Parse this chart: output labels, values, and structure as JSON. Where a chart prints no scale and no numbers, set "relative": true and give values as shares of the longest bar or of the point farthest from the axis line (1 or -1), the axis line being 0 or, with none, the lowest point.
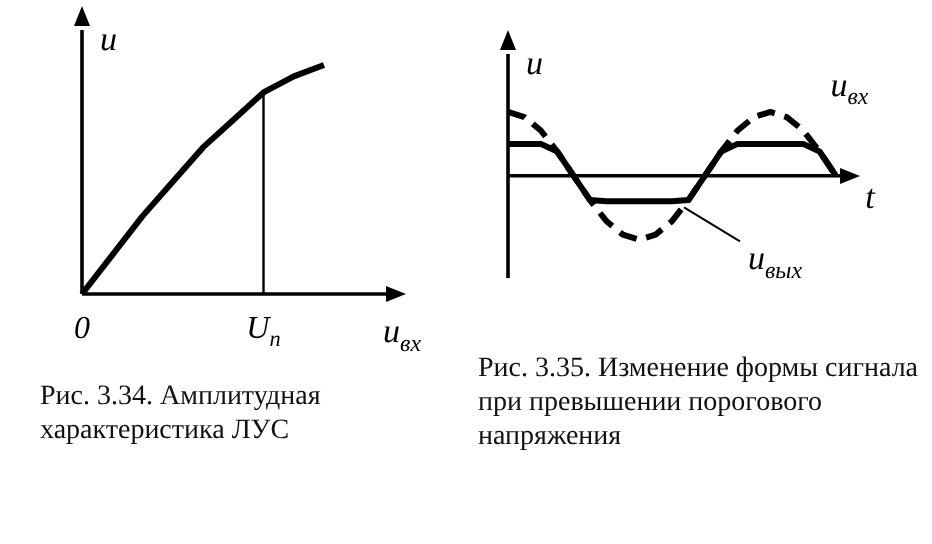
{
  "chart_data": [
    {
      "type": "line",
      "title": "Рис. 3.34. Амплитудная характеристика ЛУС",
      "xlabel": "u$_{вх}$",
      "ylabel": "u",
      "relative": true,
      "grid": false,
      "legend": false,
      "marker": "none",
      "line_style": "solid",
      "categories": [
        "0",
        null,
        null,
        null,
        null,
        null,
        "U$_{п}$",
        null,
        null
      ],
      "ref_lines": [
        {
          "axis": "x",
          "value": "U$_{п}$",
          "color": "#000000"
        }
      ],
      "series": [
        {
          "color": "#000000",
          "values": [
            0,
            0.17,
            0.34,
            0.49,
            0.64,
            0.76,
            0.88,
            0.95,
            1
          ]
        }
      ]
    },
    {
      "type": "line",
      "title": "Рис. 3.35. Изменение формы сигнала при превышении порогового напряжения",
      "xlabel": "t",
      "ylabel": "u",
      "relative": true,
      "grid": false,
      "legend": false,
      "marker": "none",
      "categories": [
        null,
        null,
        null,
        null,
        null,
        null,
        null,
        null,
        null,
        null,
        null,
        null,
        null,
        null,
        null,
        null,
        null,
        null,
        null,
        null,
        null
      ],
      "series": [
        {
          "name": "u$_{вх}$",
          "color": "#000000",
          "line_style": "dashed",
          "values": [
            1,
            0.92,
            0.71,
            0.38,
            0,
            -0.38,
            -0.71,
            -0.92,
            -1,
            -0.92,
            -0.71,
            -0.38,
            0,
            0.38,
            0.71,
            0.92,
            1,
            0.92,
            0.71,
            0.38,
            0
          ]
        },
        {
          "name": "u$_{вых}$",
          "color": "#000000",
          "line_style": "solid",
          "values": [
            0.5,
            0.5,
            0.5,
            0.38,
            0,
            -0.38,
            -0.4,
            -0.4,
            -0.4,
            -0.4,
            -0.4,
            -0.38,
            0,
            0.38,
            0.5,
            0.5,
            0.5,
            0.5,
            0.5,
            0.38,
            0
          ]
        }
      ]
    }
  ]
}
